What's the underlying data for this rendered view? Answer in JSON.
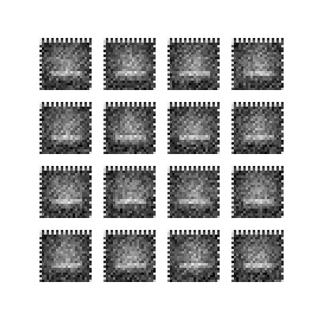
{
  "figure": {
    "rows": 4,
    "cols": 4,
    "tiles": [
      {
        "variant": 0
      },
      {
        "variant": 1
      },
      {
        "variant": 2
      },
      {
        "variant": 3
      },
      {
        "variant": 4
      },
      {
        "variant": 5
      },
      {
        "variant": 6
      },
      {
        "variant": 7
      },
      {
        "variant": 8
      },
      {
        "variant": 9
      },
      {
        "variant": 10
      },
      {
        "variant": 11
      },
      {
        "variant": 12
      },
      {
        "variant": 13
      },
      {
        "variant": 14
      },
      {
        "variant": 15
      }
    ],
    "colors": {
      "background": "#ffffff",
      "dark": "#0a0a0a",
      "light": "#f2f2f2"
    }
  }
}
